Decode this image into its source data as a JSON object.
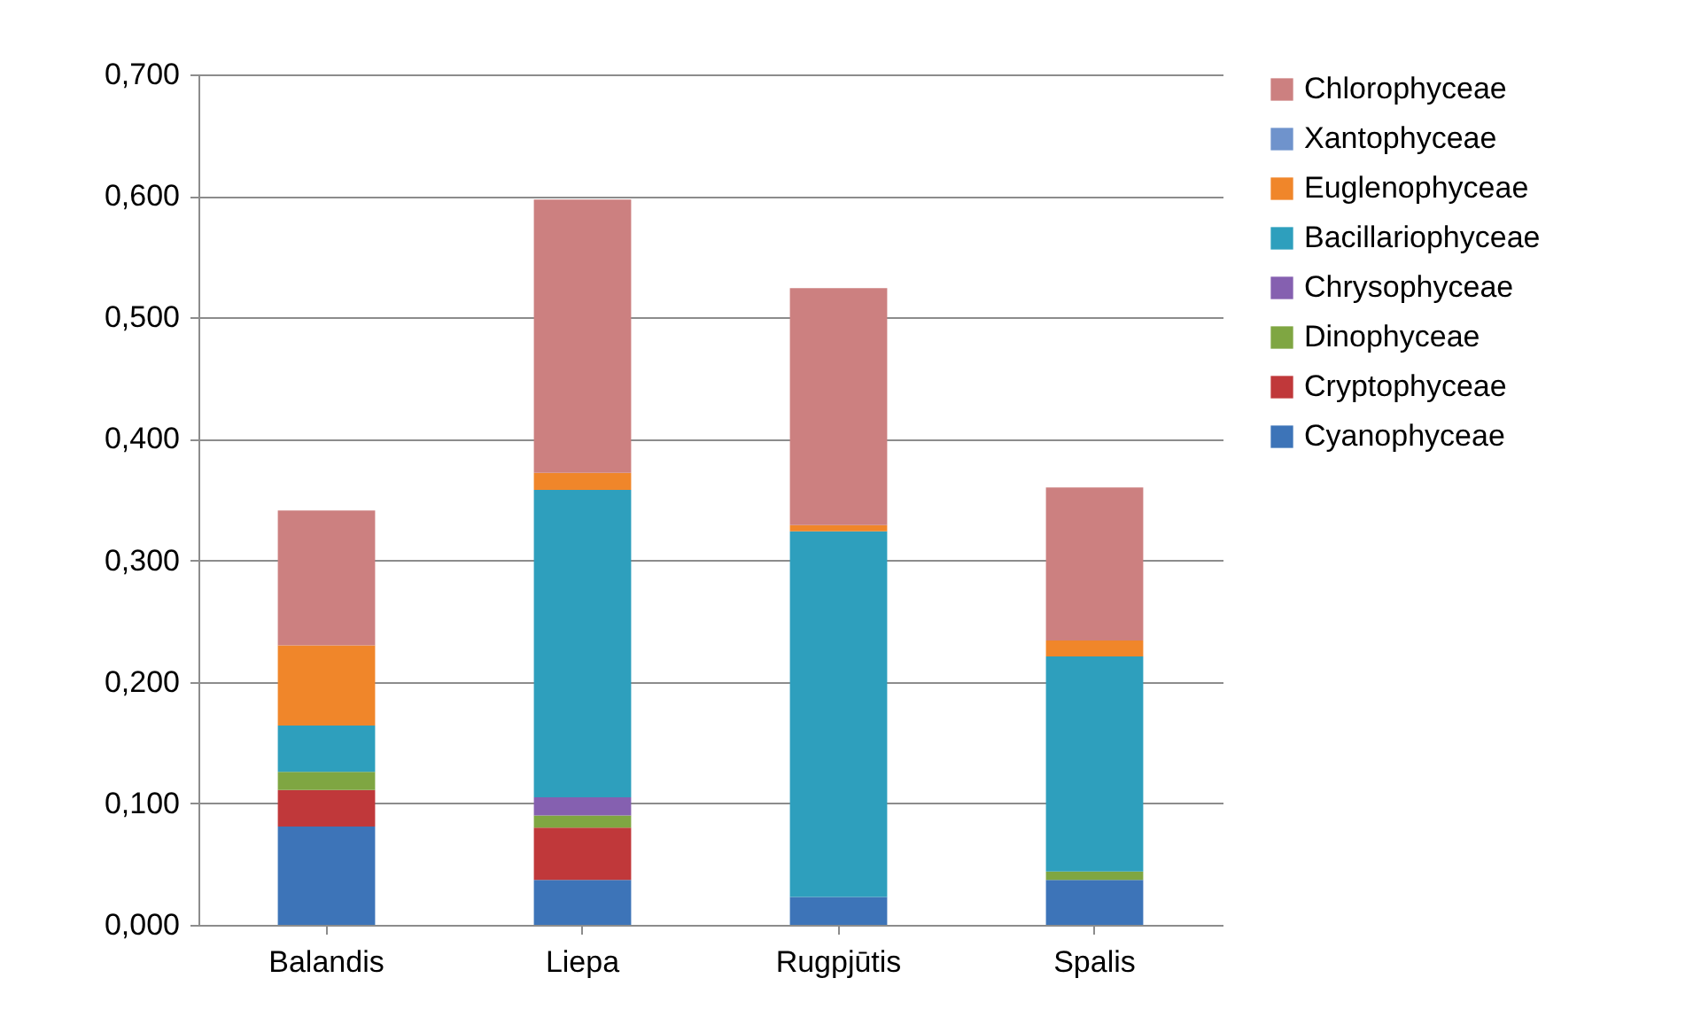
{
  "chart_data": {
    "type": "bar",
    "stacked": true,
    "categories": [
      "Balandis",
      "Liepa",
      "Rugpjūtis",
      "Spalis"
    ],
    "series": [
      {
        "name": "Cyanophyceae",
        "color": "#3d74b8",
        "values": [
          0.081,
          0.037,
          0.023,
          0.037
        ]
      },
      {
        "name": "Cryptophyceae",
        "color": "#c0383a",
        "values": [
          0.03,
          0.043,
          0,
          0
        ]
      },
      {
        "name": "Dinophyceae",
        "color": "#7fa642",
        "values": [
          0.015,
          0.01,
          0,
          0.007
        ]
      },
      {
        "name": "Chrysophyceae",
        "color": "#8560b0",
        "values": [
          0,
          0.015,
          0,
          0
        ]
      },
      {
        "name": "Bacillariophyceae",
        "color": "#2e9fbd",
        "values": [
          0.038,
          0.253,
          0.301,
          0.177
        ]
      },
      {
        "name": "Euglenophyceae",
        "color": "#f0862a",
        "values": [
          0.066,
          0.014,
          0.005,
          0.013
        ]
      },
      {
        "name": "Xantophyceae",
        "color": "#6f93cc",
        "values": [
          0,
          0,
          0,
          0
        ]
      },
      {
        "name": "Chlorophyceae",
        "color": "#cc8080",
        "values": [
          0.111,
          0.225,
          0.195,
          0.126
        ]
      }
    ],
    "ylim": [
      0,
      0.7
    ],
    "yticks": [
      {
        "value": 0,
        "label": "0,000"
      },
      {
        "value": 0.1,
        "label": "0,100"
      },
      {
        "value": 0.2,
        "label": "0,200"
      },
      {
        "value": 0.3,
        "label": "0,300"
      },
      {
        "value": 0.4,
        "label": "0,400"
      },
      {
        "value": 0.5,
        "label": "0,500"
      },
      {
        "value": 0.6,
        "label": "0,600"
      },
      {
        "value": 0.7,
        "label": "0,700"
      }
    ],
    "grid": "y",
    "legend": "right"
  }
}
